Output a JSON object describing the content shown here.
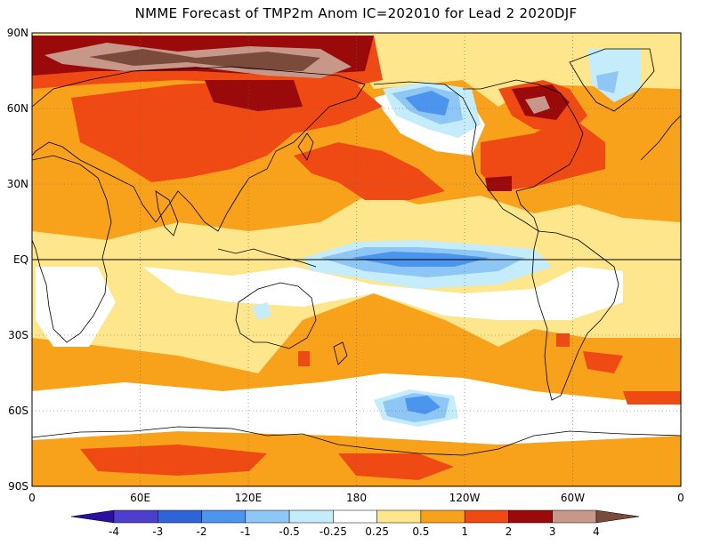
{
  "title": "NMME Forecast of TMP2m Anom IC=202010 for Lead 2 2020DJF",
  "lat_labels": [
    "90N",
    "60N",
    "30N",
    "EQ",
    "30S",
    "60S",
    "90S"
  ],
  "lon_labels": [
    "0",
    "60E",
    "120E",
    "180",
    "120W",
    "60W",
    "0"
  ],
  "colorbar": {
    "labels": [
      "-4",
      "-3",
      "-2",
      "-1",
      "-0.5",
      "-0.25",
      "0.25",
      "0.5",
      "1",
      "2",
      "3",
      "4"
    ],
    "colors": [
      "#2a0fa0",
      "#4b3fcc",
      "#2f64d8",
      "#4c95ee",
      "#8ec6f5",
      "#c4ecfb",
      "#ffffff",
      "#fde68c",
      "#f8a21b",
      "#ef4a14",
      "#9a0a0a",
      "#c7978a",
      "#7a4a3a"
    ]
  },
  "palette": {
    "white": "#ffffff",
    "yellow": "#fde68c",
    "orange": "#f8a21b",
    "red": "#ef4a14",
    "darkred": "#9a0a0a",
    "pink": "#c7978a",
    "brown": "#7a4a3a",
    "lightcyan": "#c4ecfb",
    "lightblue": "#8ec6f5",
    "blue": "#4c95ee"
  }
}
